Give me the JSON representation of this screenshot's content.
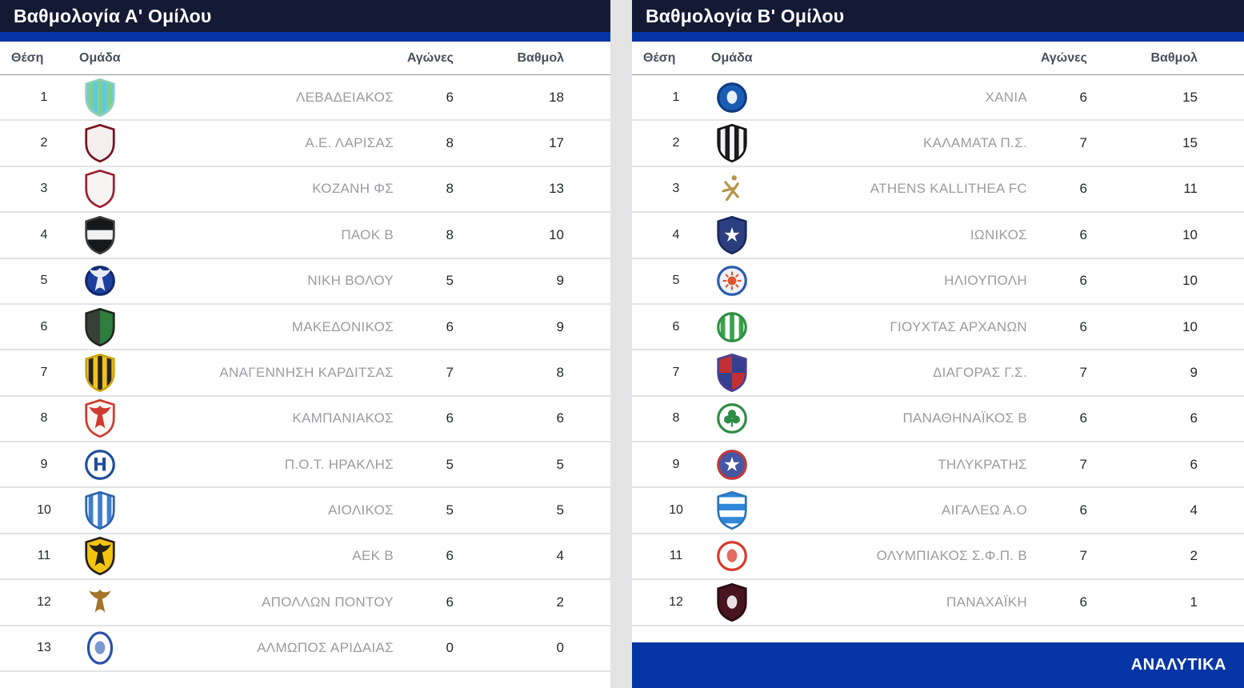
{
  "colors": {
    "title_bar_bg": "#141a34",
    "accent_blue": "#0435a5",
    "header_text": "#49505c",
    "team_name_text": "#9b9ba1",
    "number_text": "#24272e",
    "row_divider": "#e0e3e7",
    "panel_gap": "#e4e4e4",
    "analytika_bg": "#0435a5",
    "analytika_text": "#ffffff"
  },
  "columns": {
    "position": "Θέση",
    "team": "Ομάδα",
    "games": "Αγώνες",
    "points": "Βαθμολ"
  },
  "tables": [
    {
      "title": "Βαθμολογία Α' Ομίλου",
      "rows": [
        {
          "pos": 1,
          "team": "ΛΕΒΑΔΕΙΑΚΟΣ",
          "games": 6,
          "points": 18,
          "logo": {
            "icon": "levadiakos-crest",
            "shape": "shield",
            "pattern": "vstripes",
            "colors": [
              "#62c9e0",
              "#7ed08e"
            ],
            "border": "#8fcfc0"
          }
        },
        {
          "pos": 2,
          "team": "Α.Ε. ΛΑΡΙΣΑΣ",
          "games": 8,
          "points": 17,
          "logo": {
            "icon": "larisa-crest",
            "shape": "shield",
            "pattern": "solid",
            "colors": [
              "#f4eeee"
            ],
            "border": "#76121f"
          }
        },
        {
          "pos": 3,
          "team": "ΚΟΖΑΝΗ ΦΣ",
          "games": 8,
          "points": 13,
          "logo": {
            "icon": "kozani-crest",
            "shape": "shield",
            "pattern": "solid",
            "colors": [
              "#f7f4f4"
            ],
            "border": "#9c2233"
          }
        },
        {
          "pos": 4,
          "team": "ΠΑΟΚ Β",
          "games": 8,
          "points": 10,
          "logo": {
            "icon": "paok-crest",
            "shape": "shield",
            "pattern": "hband",
            "colors": [
              "#17181a",
              "#f2f2f2"
            ],
            "border": "#3a3a3a"
          }
        },
        {
          "pos": 5,
          "team": "ΝΙΚΗ ΒΟΛΟΥ",
          "games": 5,
          "points": 9,
          "logo": {
            "icon": "niki-volou-crest",
            "shape": "circle",
            "pattern": "solid",
            "colors": [
              "#1d3f9e"
            ],
            "border": "#13286b",
            "glyph": "eagle",
            "glyph_color": "#e8ecf5"
          }
        },
        {
          "pos": 6,
          "team": "ΜΑΚΕΔΟΝΙΚΟΣ",
          "games": 6,
          "points": 9,
          "logo": {
            "icon": "makedonikos-crest",
            "shape": "shield",
            "pattern": "vsplit",
            "colors": [
              "#3a3f3a",
              "#2f7d3f"
            ],
            "border": "#23271f"
          }
        },
        {
          "pos": 7,
          "team": "ΑΝΑΓΕΝΝΗΣΗ ΚΑΡΔΙΤΣΑΣ",
          "games": 7,
          "points": 8,
          "logo": {
            "icon": "karditsa-crest",
            "shape": "shield",
            "pattern": "vstripes",
            "colors": [
              "#f0c41a",
              "#26231a"
            ],
            "border": "#caa50e"
          }
        },
        {
          "pos": 8,
          "team": "ΚΑΜΠΑΝΙΑΚΟΣ",
          "games": 6,
          "points": 6,
          "logo": {
            "icon": "kampaniakos-crest",
            "shape": "shield",
            "pattern": "solid",
            "colors": [
              "#faf6f4"
            ],
            "border": "#d03a2e",
            "glyph": "eagle",
            "glyph_color": "#d03a2e"
          }
        },
        {
          "pos": 9,
          "team": "Π.Ο.Τ. ΗΡΑΚΛΗΣ",
          "games": 5,
          "points": 5,
          "logo": {
            "icon": "iraklis-crest",
            "shape": "circle",
            "pattern": "solid",
            "colors": [
              "#ffffff"
            ],
            "border": "#1f4e9c",
            "glyph": "H",
            "glyph_color": "#1f4e9c"
          }
        },
        {
          "pos": 10,
          "team": "ΑΙΟΛΙΚΟΣ",
          "games": 5,
          "points": 5,
          "logo": {
            "icon": "aiolikos-crest",
            "shape": "shield",
            "pattern": "vstripes",
            "colors": [
              "#ffffff",
              "#3f7fd1"
            ],
            "border": "#2f62ad"
          }
        },
        {
          "pos": 11,
          "team": "ΑΕΚ Β",
          "games": 6,
          "points": 4,
          "logo": {
            "icon": "aek-crest",
            "shape": "shield",
            "pattern": "solid",
            "colors": [
              "#f3c50f"
            ],
            "border": "#262115",
            "glyph": "eagle",
            "glyph_color": "#262115"
          }
        },
        {
          "pos": 12,
          "team": "ΑΠΟΛΛΩΝ ΠΟΝΤΟΥ",
          "games": 6,
          "points": 2,
          "logo": {
            "icon": "apollon-pontou-crest",
            "shape": "none",
            "pattern": "none",
            "colors": [],
            "glyph": "eagle",
            "glyph_color": "#a4742a"
          }
        },
        {
          "pos": 13,
          "team": "ΑΛΜΩΠΟΣ ΑΡΙΔΑΙΑΣ",
          "games": 0,
          "points": 0,
          "logo": {
            "icon": "almopos-crest",
            "shape": "oval",
            "pattern": "solid",
            "colors": [
              "#ffffff"
            ],
            "border": "#2b50ae",
            "glyph": "dot",
            "glyph_color": "#7b98cf"
          }
        }
      ]
    },
    {
      "title": "Βαθμολογία Β' Ομίλου",
      "footer_label": "ΑΝΑΛΥΤΙΚΑ",
      "rows": [
        {
          "pos": 1,
          "team": "ΧΑΝΙΑ",
          "games": 6,
          "points": 15,
          "logo": {
            "icon": "chania-crest",
            "shape": "circle",
            "pattern": "solid",
            "colors": [
              "#1b5cb3"
            ],
            "border": "#0d3c86",
            "glyph": "dot",
            "glyph_color": "#e8f0fa"
          }
        },
        {
          "pos": 2,
          "team": "ΚΑΛΑΜΑΤΑ Π.Σ.",
          "games": 7,
          "points": 15,
          "logo": {
            "icon": "kalamata-crest",
            "shape": "shield",
            "pattern": "vstripes",
            "colors": [
              "#1c1c1e",
              "#f4f4f4"
            ],
            "border": "#141414"
          }
        },
        {
          "pos": 3,
          "team": "ATHENS KALLITHEA FC",
          "games": 6,
          "points": 11,
          "logo": {
            "icon": "kallithea-crest",
            "shape": "none",
            "pattern": "none",
            "colors": [],
            "glyph": "xmark",
            "glyph_color": "#b5954a"
          }
        },
        {
          "pos": 4,
          "team": "ΙΩΝΙΚΟΣ",
          "games": 6,
          "points": 10,
          "logo": {
            "icon": "ionikos-crest",
            "shape": "shield",
            "pattern": "solid",
            "colors": [
              "#2b3f80"
            ],
            "border": "#1a2a5c",
            "glyph": "star",
            "glyph_color": "#ffffff"
          }
        },
        {
          "pos": 5,
          "team": "ΗΛΙΟΥΠΟΛΗ",
          "games": 6,
          "points": 10,
          "logo": {
            "icon": "ilioupoli-crest",
            "shape": "circle",
            "pattern": "solid",
            "colors": [
              "#eef2f8"
            ],
            "border": "#2b5cab",
            "glyph": "sun",
            "glyph_color": "#e2552c"
          }
        },
        {
          "pos": 6,
          "team": "ΓΙΟΥΧΤΑΣ ΑΡΧΑΝΩΝ",
          "games": 6,
          "points": 10,
          "logo": {
            "icon": "giouchtas-crest",
            "shape": "circle",
            "pattern": "vstripes",
            "colors": [
              "#ffffff",
              "#3aa24e"
            ],
            "border": "#2f8f44"
          }
        },
        {
          "pos": 7,
          "team": "ΔΙΑΓΟΡΑΣ Γ.Σ.",
          "games": 7,
          "points": 9,
          "logo": {
            "icon": "diagoras-crest",
            "shape": "shield",
            "pattern": "quarters",
            "colors": [
              "#c03034",
              "#33418f"
            ],
            "border": "#4a3f8f"
          }
        },
        {
          "pos": 8,
          "team": "ΠΑΝΑΘΗΝΑΪΚΟΣ Β",
          "games": 6,
          "points": 6,
          "logo": {
            "icon": "panathinaikos-crest",
            "shape": "circle",
            "pattern": "solid",
            "colors": [
              "#ffffff"
            ],
            "border": "#2e8b44",
            "glyph": "trefoil",
            "glyph_color": "#2e8b44"
          }
        },
        {
          "pos": 9,
          "team": "ΤΗΛΥΚΡΑΤΗΣ",
          "games": 7,
          "points": 6,
          "logo": {
            "icon": "tilikratis-crest",
            "shape": "circle",
            "pattern": "solid",
            "colors": [
              "#4656a3"
            ],
            "border": "#c23a3a",
            "glyph": "star",
            "glyph_color": "#ffffff"
          }
        },
        {
          "pos": 10,
          "team": "ΑΙΓΑΛΕΩ Α.Ο",
          "games": 6,
          "points": 4,
          "logo": {
            "icon": "aigaleo-crest",
            "shape": "shield",
            "pattern": "hstripes",
            "colors": [
              "#3188d8",
              "#ffffff"
            ],
            "border": "#2a74bd"
          }
        },
        {
          "pos": 11,
          "team": "ΟΛΥΜΠΙΑΚΟΣ Σ.Φ.Π. Β",
          "games": 7,
          "points": 2,
          "logo": {
            "icon": "olympiakos-crest",
            "shape": "circle",
            "pattern": "solid",
            "colors": [
              "#ffffff"
            ],
            "border": "#d8392e",
            "glyph": "dot",
            "glyph_color": "#e4695f"
          }
        },
        {
          "pos": 12,
          "team": "ΠΑΝΑΧΑΪΚΗ",
          "games": 6,
          "points": 1,
          "logo": {
            "icon": "panachaiki-crest",
            "shape": "shield",
            "pattern": "solid",
            "colors": [
              "#47141f"
            ],
            "border": "#2a0c12",
            "glyph": "dot",
            "glyph_color": "#e8e0e2"
          }
        }
      ]
    }
  ]
}
